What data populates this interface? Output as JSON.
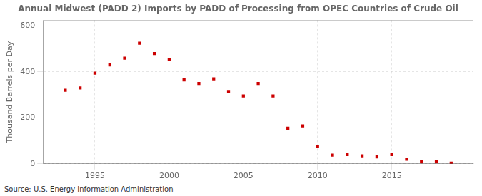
{
  "chart_data": {
    "type": "scatter",
    "title": "Annual Midwest (PADD 2) Imports by PADD of Processing from OPEC Countries of Crude Oil",
    "ylabel": "Thousand Barrels per Day",
    "annotations": [
      "Source: U.S. Energy Information Administration"
    ],
    "x": [
      1993,
      1994,
      1995,
      1996,
      1997,
      1998,
      1999,
      2000,
      2001,
      2002,
      2003,
      2004,
      2005,
      2006,
      2007,
      2008,
      2009,
      2010,
      2011,
      2012,
      2013,
      2014,
      2015,
      2016,
      2017,
      2018,
      2019
    ],
    "values": [
      320,
      330,
      395,
      430,
      460,
      525,
      480,
      455,
      365,
      350,
      370,
      315,
      295,
      350,
      295,
      155,
      165,
      75,
      38,
      40,
      35,
      30,
      40,
      20,
      8,
      8,
      3
    ],
    "color": "#cc0000",
    "marker": "square",
    "xlim": [
      1991.5,
      2020.5
    ],
    "xticks": [
      1995,
      2000,
      2005,
      2010,
      2015
    ],
    "ylim": [
      0,
      625
    ],
    "yticks": [
      0,
      200,
      400,
      600
    ],
    "grid": true
  }
}
